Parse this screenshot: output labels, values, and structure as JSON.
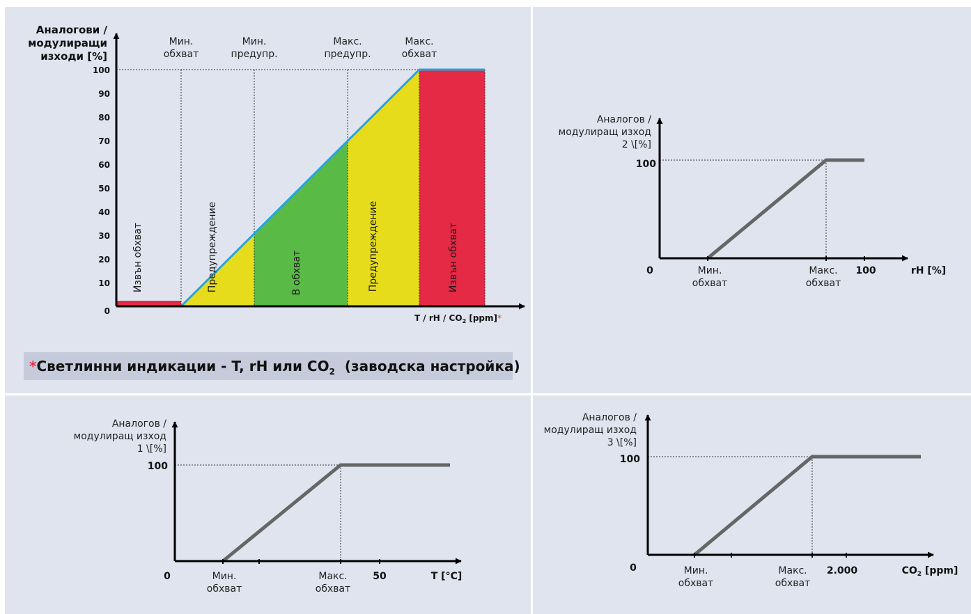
{
  "main": {
    "y_title": [
      "Аналогови /",
      "модулиращи",
      "изходи [%]"
    ],
    "y_ticks": [
      "0",
      "10",
      "20",
      "30",
      "40",
      "50",
      "60",
      "70",
      "80",
      "90",
      "100"
    ],
    "thresholds": [
      [
        "Мин.",
        "обхват"
      ],
      [
        "Мин.",
        "предупр."
      ],
      [
        "Макс.",
        "предупр."
      ],
      [
        "Макс.",
        "обхват"
      ]
    ],
    "zones": [
      "Извън обхват",
      "Предупреждение",
      "В обхват",
      "Предупреждение",
      "Извън обхват"
    ],
    "x_label": "T / rH / CO",
    "x_label_sub": "2",
    "x_label_unit": " [ppm]",
    "x_label_star": "*"
  },
  "note": {
    "star": "*",
    "text": "Светлинни индикации - T, rH или CO",
    "sub": "2",
    "suffix": "  (заводска настройка)"
  },
  "rh_chart": {
    "y_title": [
      "Аналогов /",
      "модулиращ изход",
      "2 \\[%]"
    ],
    "y_max": "100",
    "origin": "0",
    "min_label": [
      "Мин.",
      "обхват"
    ],
    "max_label": [
      "Макс.",
      "обхват"
    ],
    "x_end": "100",
    "x_unit": "rH [%]"
  },
  "t_chart": {
    "y_title": [
      "Аналогов /",
      "модулиращ изход",
      "1 \\[%]"
    ],
    "y_max": "100",
    "origin": "0",
    "min_label": [
      "Мин.",
      "обхват"
    ],
    "max_label": [
      "Макс.",
      "обхват"
    ],
    "x_end": "50",
    "x_unit": "T [°C]"
  },
  "co2_chart": {
    "y_title": [
      "Аналогов /",
      "модулиращ изход",
      "3 \\[%]"
    ],
    "y_max": "100",
    "origin": "0",
    "min_label": [
      "Мин.",
      "обхват"
    ],
    "max_label": [
      "Макс.",
      "обхват"
    ],
    "x_end": "2.000",
    "x_unit": "CO",
    "x_unit_sub": "2",
    "x_unit_suffix": " [ppm]"
  },
  "colors": {
    "background": "#dfe4ee",
    "red": "#e52a45",
    "yellow": "#e6dc1c",
    "green": "#5aba46",
    "line_blue": "#2aa3db",
    "line_gray": "#666666"
  }
}
